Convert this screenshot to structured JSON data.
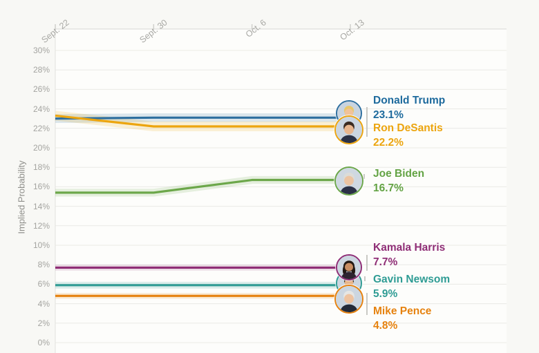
{
  "chart_data": {
    "type": "line",
    "ylabel": "Implied Probability",
    "grid": "horizontal",
    "legend_position": "right of line ends, with candidate photos",
    "x_tick_labels": [
      "Sept. 22",
      "Sept. 30",
      "Oct. 6",
      "Oct. 13"
    ],
    "y_tick_values": [
      0,
      2,
      4,
      6,
      8,
      10,
      12,
      14,
      16,
      18,
      20,
      22,
      24,
      26,
      28,
      30
    ],
    "y_tick_labels": [
      "0%",
      "2%",
      "4%",
      "6%",
      "8%",
      "10%",
      "12%",
      "14%",
      "16%",
      "18%",
      "20%",
      "22%",
      "24%",
      "26%",
      "28%",
      "30%"
    ],
    "ylim": [
      0,
      32.2
    ],
    "series": [
      {
        "name": "Donald Trump",
        "value_label": "23.1%",
        "color": "#2e6f9f",
        "text_color": "#1d6a9d",
        "band": 0.45,
        "values": [
          23.0,
          23.1,
          23.1,
          23.1
        ],
        "avatar": {
          "hair": "#e9c76a",
          "skin": "#f0c29a",
          "suit": "#2b3146",
          "bg": "#c9d4df",
          "style": "male"
        }
      },
      {
        "name": "Ron DeSantis",
        "value_label": "22.2%",
        "color": "#eca50f",
        "text_color": "#eca50f",
        "band": 0.5,
        "values": [
          23.3,
          22.2,
          22.2,
          22.2
        ],
        "avatar": {
          "hair": "#3b2b21",
          "skin": "#e9b68e",
          "suit": "#2b3146",
          "bg": "#cbd5e0",
          "style": "male"
        }
      },
      {
        "name": "Joe Biden",
        "value_label": "16.7%",
        "color": "#6ca74a",
        "text_color": "#63a344",
        "band": 0.4,
        "values": [
          15.4,
          15.4,
          16.7,
          16.7
        ],
        "avatar": {
          "hair": "#dcdcd8",
          "skin": "#ecc4a2",
          "suit": "#2b3146",
          "bg": "#cfd8e1",
          "style": "male"
        }
      },
      {
        "name": "Kamala Harris",
        "value_label": "7.7%",
        "color": "#8f2e76",
        "text_color": "#8f2e76",
        "band": 0.3,
        "values": [
          7.7,
          7.7,
          7.7,
          7.7
        ],
        "avatar": {
          "hair": "#241a14",
          "skin": "#c98e63",
          "suit": "#2e2430",
          "bg": "#ccd6e0",
          "style": "long"
        }
      },
      {
        "name": "Gavin Newsom",
        "value_label": "5.9%",
        "color": "#2f9c94",
        "text_color": "#2f9c94",
        "band": 0.35,
        "values": [
          5.9,
          5.9,
          5.9,
          5.9
        ],
        "avatar": {
          "hair": "#33281f",
          "skin": "#e6b489",
          "suit": "#252c3b",
          "bg": "#cbd5df",
          "style": "male"
        }
      },
      {
        "name": "Mike Pence",
        "value_label": "4.8%",
        "color": "#e6820f",
        "text_color": "#e6820f",
        "band": 0.3,
        "values": [
          4.8,
          4.8,
          4.8,
          4.8
        ],
        "avatar": {
          "hair": "#e6e6e3",
          "skin": "#eec3a0",
          "suit": "#232a38",
          "bg": "#ccd6e0",
          "style": "male"
        }
      }
    ],
    "style_colors": {
      "gridline": "#eaeae6",
      "axis_line": "#d8d8d4",
      "tick_mark": "#d0d0cc",
      "left_border": "#e2e2de",
      "axis_text": "#a8a8a4",
      "y_title_text": "#8e8e8a",
      "leader": "#c9c9c5"
    }
  }
}
